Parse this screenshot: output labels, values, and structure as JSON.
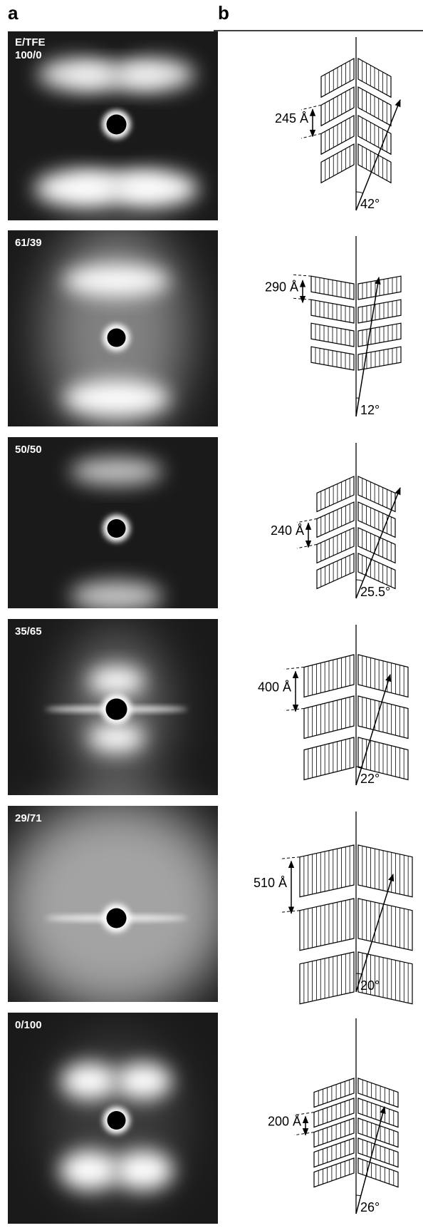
{
  "panel_labels": {
    "a": "a",
    "b": "b"
  },
  "column_header": "E/TFE",
  "rows": [
    {
      "composition": "100/0",
      "spacing": "245 Å",
      "angle": "42°"
    },
    {
      "composition": "61/39",
      "spacing": "290 Å",
      "angle": "12°"
    },
    {
      "composition": "50/50",
      "spacing": "240 Å",
      "angle": "25.5°"
    },
    {
      "composition": "35/65",
      "spacing": "400 Å",
      "angle": "22°"
    },
    {
      "composition": "29/71",
      "spacing": "510 Å",
      "angle": "20°"
    },
    {
      "composition": "0/100",
      "spacing": "200 Å",
      "angle": "26°"
    }
  ]
}
